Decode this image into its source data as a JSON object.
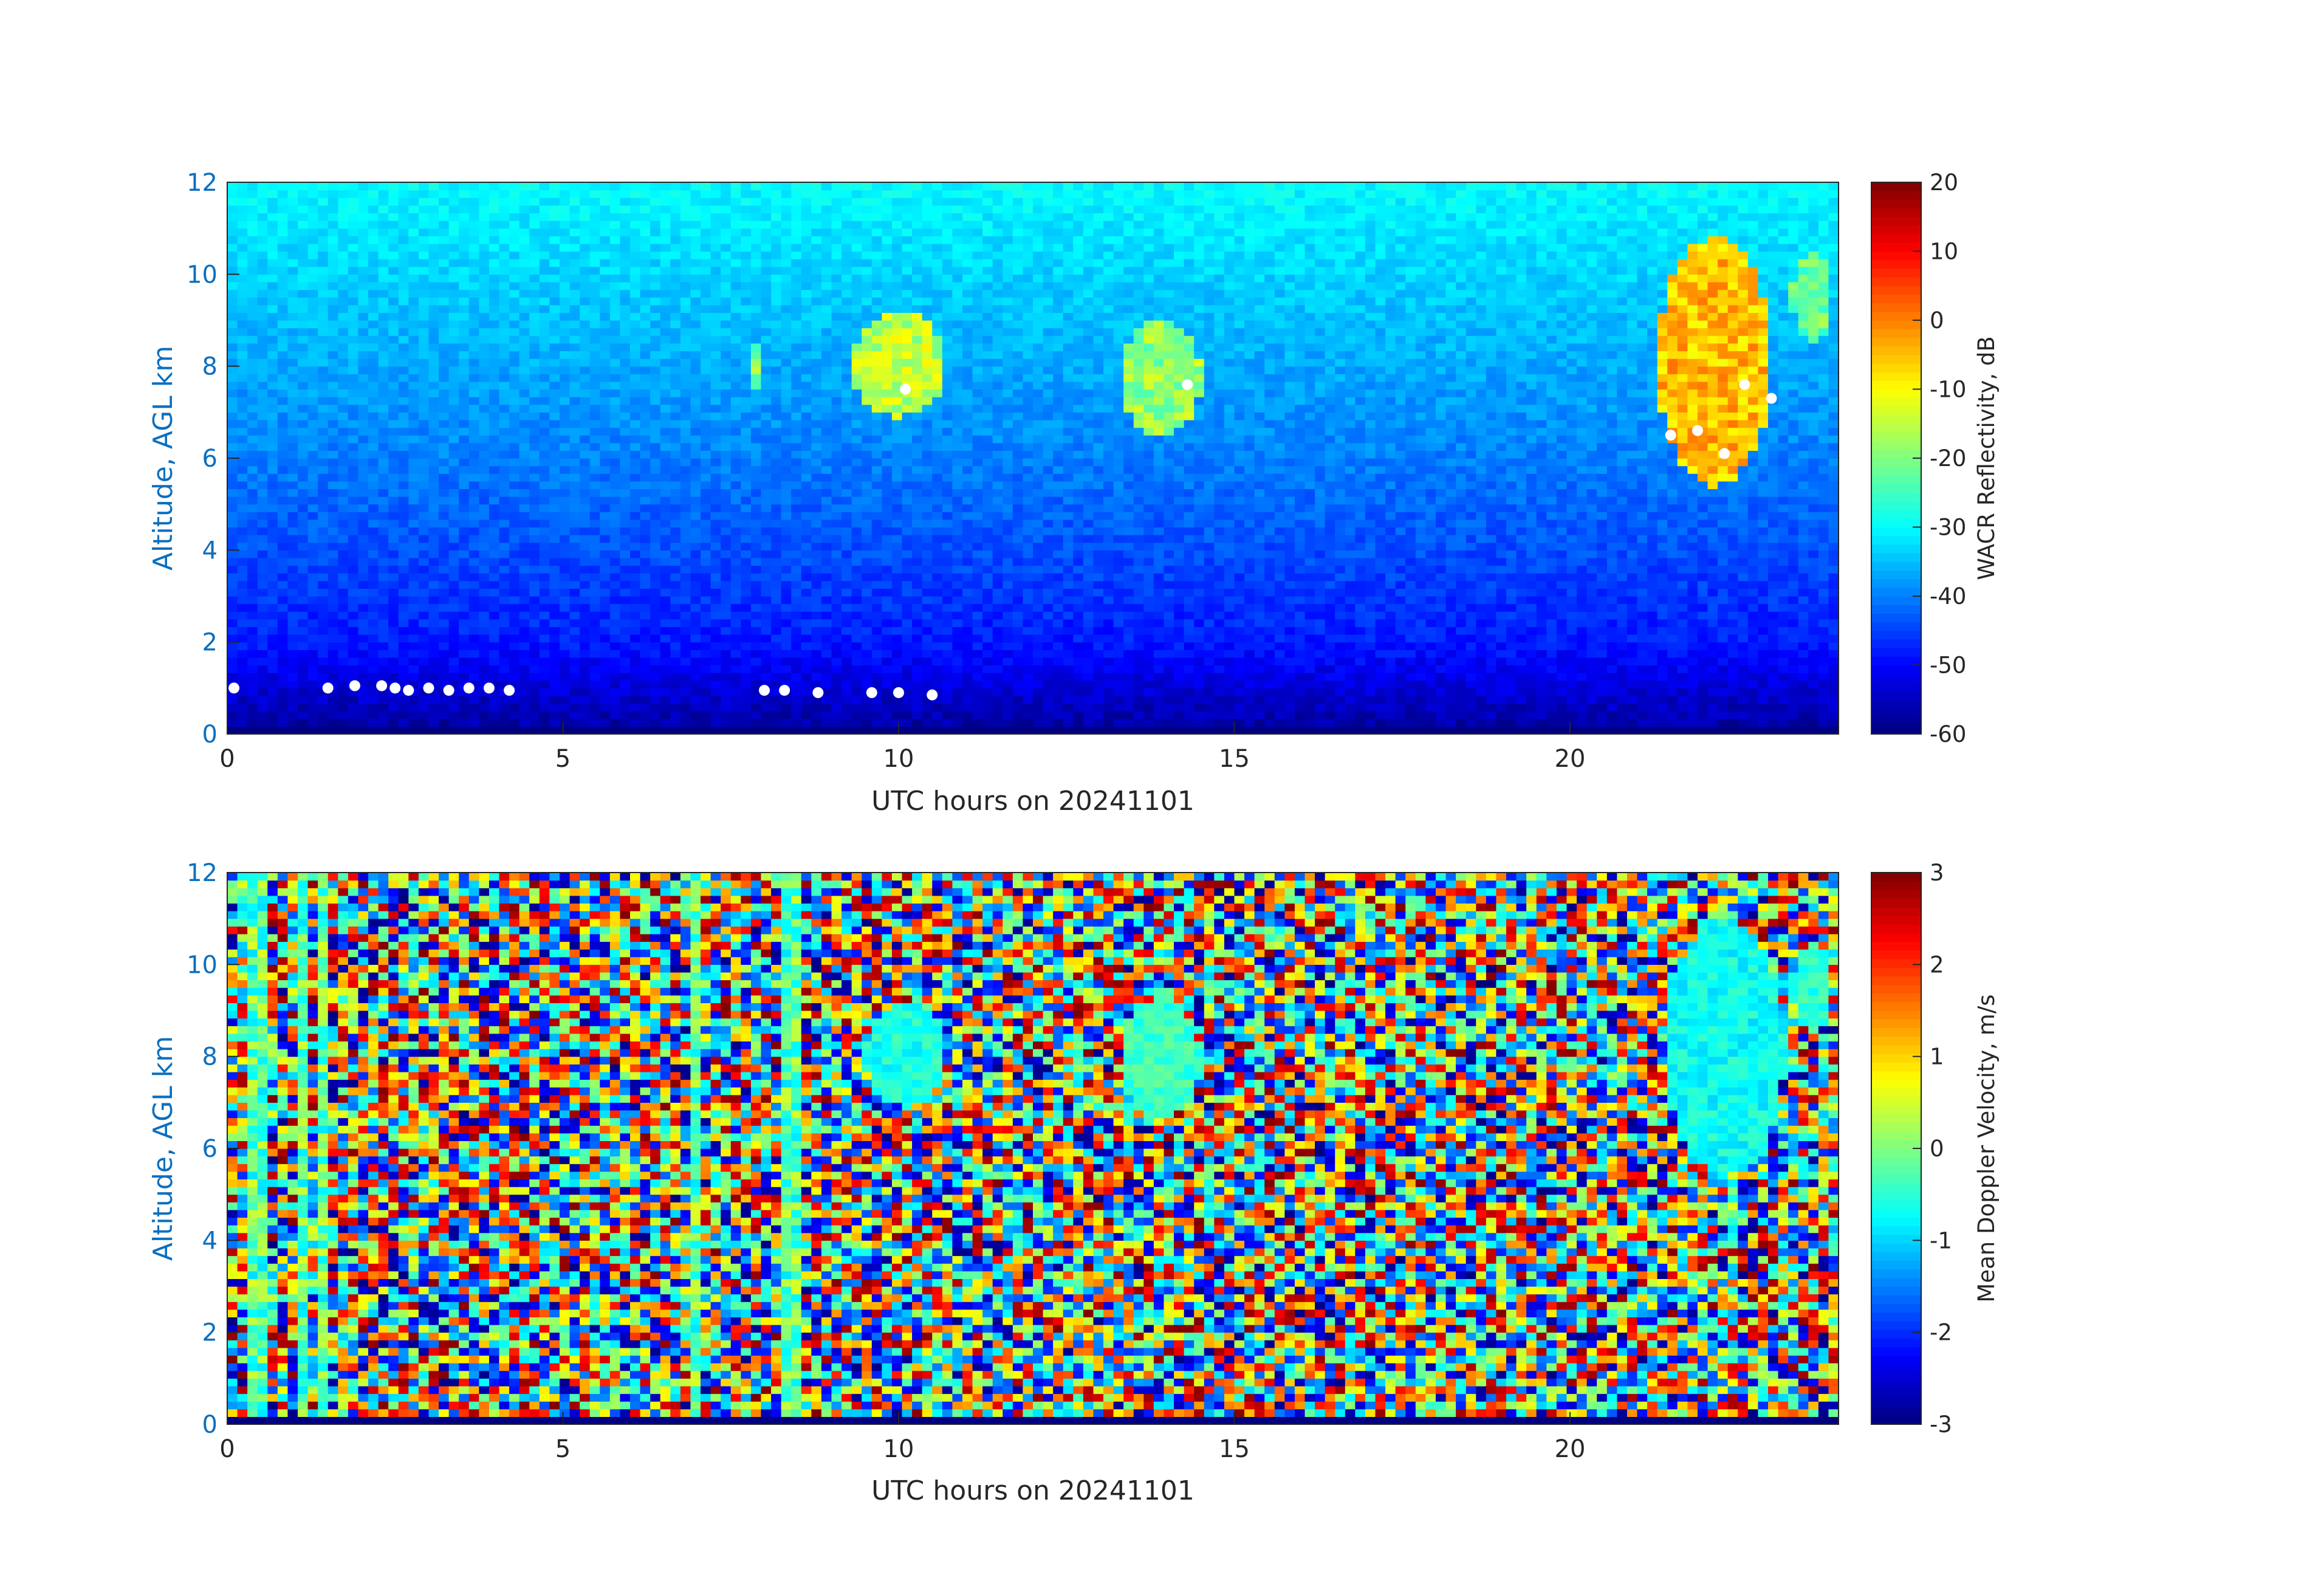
{
  "chart_data": [
    {
      "type": "heatmap",
      "title": "",
      "xlabel": "UTC hours on 20241101",
      "ylabel": "Altitude, AGL km",
      "xlim": [
        0,
        24
      ],
      "ylim": [
        0,
        12
      ],
      "xticks": [
        0,
        5,
        10,
        15,
        20
      ],
      "yticks": [
        0,
        2,
        4,
        6,
        8,
        10,
        12
      ],
      "colormap": "jet",
      "clim": [
        -60,
        20
      ],
      "colorbar_label": "WACR Reflectivity, dB",
      "colorbar_ticks": [
        -60,
        -50,
        -40,
        -30,
        -20,
        -10,
        0,
        10,
        20
      ],
      "background_description_values": {
        "near_surface_dB": -58,
        "at_2km_dB": -48,
        "at_6km_dB": -40,
        "at_12km_dB": -30
      },
      "cloud_features": [
        {
          "x_range": [
            9.3,
            10.7
          ],
          "y_range": [
            6.9,
            9.2
          ],
          "value_dB": -15
        },
        {
          "x_range": [
            13.3,
            14.5
          ],
          "y_range": [
            6.5,
            9.0
          ],
          "value_dB": -18
        },
        {
          "x_range": [
            21.3,
            23.0
          ],
          "y_range": [
            5.4,
            10.8
          ],
          "value_dB": -5
        },
        {
          "x_range": [
            23.3,
            23.9
          ],
          "y_range": [
            8.5,
            10.5
          ],
          "value_dB": -22
        },
        {
          "x_range": [
            7.8,
            8.0
          ],
          "y_range": [
            7.5,
            8.5
          ],
          "value_dB": -20
        }
      ],
      "masked_points": [
        {
          "x": 0.1,
          "y": 1.0
        },
        {
          "x": 1.5,
          "y": 1.0
        },
        {
          "x": 1.9,
          "y": 1.05
        },
        {
          "x": 2.3,
          "y": 1.05
        },
        {
          "x": 2.5,
          "y": 1.0
        },
        {
          "x": 2.7,
          "y": 0.95
        },
        {
          "x": 3.0,
          "y": 1.0
        },
        {
          "x": 3.3,
          "y": 0.95
        },
        {
          "x": 3.6,
          "y": 1.0
        },
        {
          "x": 3.9,
          "y": 1.0
        },
        {
          "x": 4.2,
          "y": 0.95
        },
        {
          "x": 8.0,
          "y": 0.95
        },
        {
          "x": 8.3,
          "y": 0.95
        },
        {
          "x": 8.8,
          "y": 0.9
        },
        {
          "x": 9.6,
          "y": 0.9
        },
        {
          "x": 10.0,
          "y": 0.9
        },
        {
          "x": 10.5,
          "y": 0.85
        },
        {
          "x": 14.3,
          "y": 7.6
        },
        {
          "x": 10.1,
          "y": 7.5
        },
        {
          "x": 21.5,
          "y": 6.5
        },
        {
          "x": 21.9,
          "y": 6.6
        },
        {
          "x": 22.3,
          "y": 6.1
        },
        {
          "x": 22.6,
          "y": 7.6
        },
        {
          "x": 23.0,
          "y": 7.3
        }
      ]
    },
    {
      "type": "heatmap",
      "title": "",
      "xlabel": "UTC hours on 20241101",
      "ylabel": "Altitude, AGL km",
      "xlim": [
        0,
        24
      ],
      "ylim": [
        0,
        12
      ],
      "xticks": [
        0,
        5,
        10,
        15,
        20
      ],
      "yticks": [
        0,
        2,
        4,
        6,
        8,
        10,
        12
      ],
      "colormap": "jet",
      "clim": [
        -3,
        3
      ],
      "colorbar_label": "Mean Doppler Velocity, m/s",
      "colorbar_ticks": [
        -3,
        -2,
        -1,
        0,
        1,
        2,
        3
      ],
      "background_description_values": {
        "noise_range_m_s": [
          -3,
          3
        ]
      },
      "cloud_features": [
        {
          "x_range": [
            9.5,
            10.7
          ],
          "y_range": [
            6.9,
            9.2
          ],
          "value_m_s": -0.6
        },
        {
          "x_range": [
            13.3,
            14.5
          ],
          "y_range": [
            6.6,
            9.3
          ],
          "value_m_s": -0.4
        },
        {
          "x_range": [
            21.4,
            23.2
          ],
          "y_range": [
            5.4,
            11.0
          ],
          "value_m_s": -0.7
        },
        {
          "x_range": [
            23.3,
            23.9
          ],
          "y_range": [
            8.5,
            10.5
          ],
          "value_m_s": -0.5
        }
      ],
      "vertical_streaks_hours": [
        0.35,
        0.5,
        1.1,
        1.45,
        7.0,
        8.4
      ]
    }
  ]
}
